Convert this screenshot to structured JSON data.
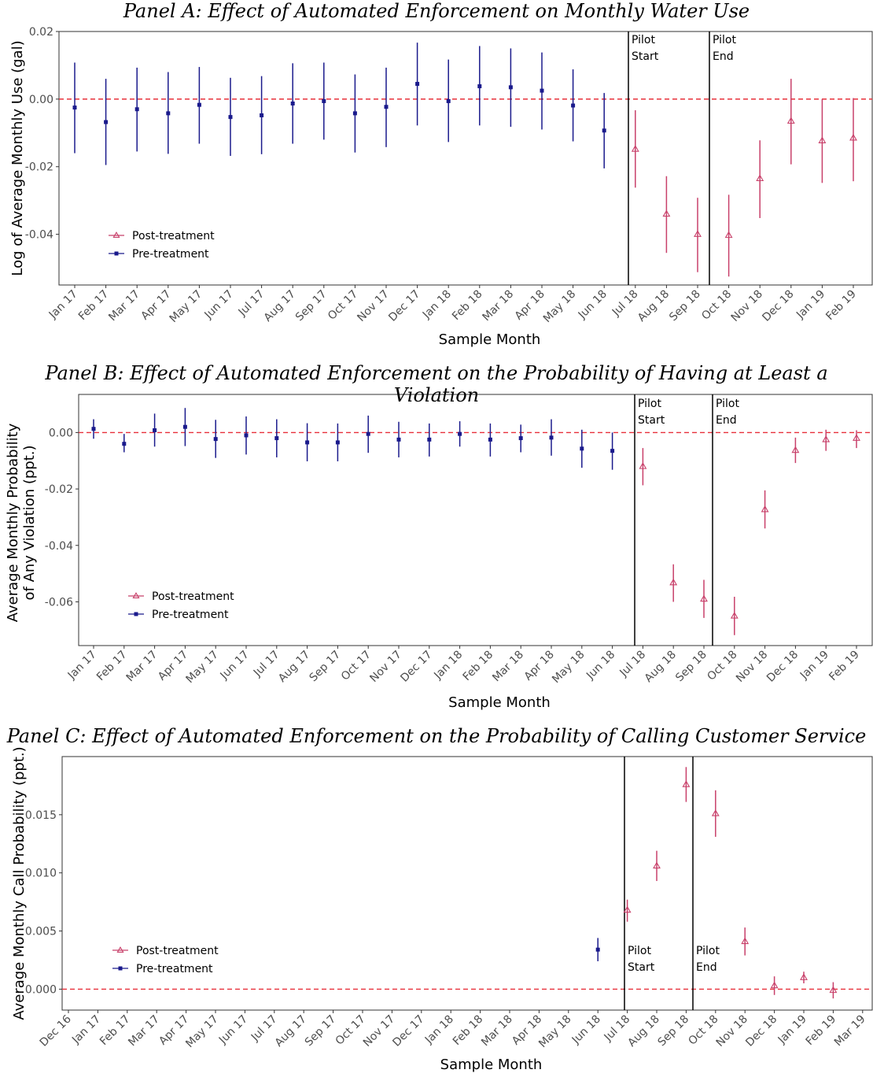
{
  "chart_data": [
    {
      "type": "scatter",
      "title": "Panel A: Effect of Automated Enforcement on Monthly Water Use",
      "xlabel": "Sample Month",
      "ylabel": "Log of Average Monthly Use (gal)",
      "ylim": [
        -0.055,
        0.02
      ],
      "yticks": [
        "0.02",
        "0.00",
        "-0.02",
        "-0.04"
      ],
      "grid": false,
      "legend_position": "bottom-left",
      "categories": [
        "Jan 17",
        "Feb 17",
        "Mar 17",
        "Apr 17",
        "May 17",
        "Jun 17",
        "Jul 17",
        "Aug 17",
        "Sep 17",
        "Oct 17",
        "Nov 17",
        "Dec 17",
        "Jan 18",
        "Feb 18",
        "Mar 18",
        "Apr 18",
        "May 18",
        "Jun 18",
        "Jul 18",
        "Aug 18",
        "Sep 18",
        "Oct 18",
        "Nov 18",
        "Dec 18",
        "Jan 19",
        "Feb 19"
      ],
      "reference_line": 0,
      "vlines": [
        {
          "lines": [
            "Pilot",
            "Start"
          ]
        },
        {
          "lines": [
            "Pilot",
            "End"
          ]
        }
      ],
      "series": [
        {
          "name": "Pre-treatment",
          "color": "#1a1a8c",
          "marker": "square",
          "points": [
            {
              "x": "Jan 17",
              "y": -0.0025,
              "lo": -0.016,
              "hi": 0.0108
            },
            {
              "x": "Feb 17",
              "y": -0.0068,
              "lo": -0.0195,
              "hi": 0.006
            },
            {
              "x": "Mar 17",
              "y": -0.003,
              "lo": -0.0155,
              "hi": 0.0093
            },
            {
              "x": "Apr 17",
              "y": -0.0042,
              "lo": -0.0162,
              "hi": 0.008
            },
            {
              "x": "May 17",
              "y": -0.0017,
              "lo": -0.0132,
              "hi": 0.0095
            },
            {
              "x": "Jun 17",
              "y": -0.0053,
              "lo": -0.0168,
              "hi": 0.0063
            },
            {
              "x": "Jul 17",
              "y": -0.0048,
              "lo": -0.0163,
              "hi": 0.0068
            },
            {
              "x": "Aug 17",
              "y": -0.0013,
              "lo": -0.0132,
              "hi": 0.0106
            },
            {
              "x": "Sep 17",
              "y": -0.0006,
              "lo": -0.012,
              "hi": 0.0108
            },
            {
              "x": "Oct 17",
              "y": -0.0042,
              "lo": -0.0158,
              "hi": 0.0073
            },
            {
              "x": "Nov 17",
              "y": -0.0023,
              "lo": -0.0142,
              "hi": 0.0093
            },
            {
              "x": "Dec 17",
              "y": 0.0045,
              "lo": -0.0078,
              "hi": 0.0167
            },
            {
              "x": "Jan 18",
              "y": -0.0006,
              "lo": -0.0127,
              "hi": 0.0117
            },
            {
              "x": "Feb 18",
              "y": 0.0038,
              "lo": -0.0078,
              "hi": 0.0157
            },
            {
              "x": "Mar 18",
              "y": 0.0035,
              "lo": -0.0082,
              "hi": 0.015
            },
            {
              "x": "Apr 18",
              "y": 0.0025,
              "lo": -0.009,
              "hi": 0.0138
            },
            {
              "x": "May 18",
              "y": -0.0019,
              "lo": -0.0125,
              "hi": 0.0088
            },
            {
              "x": "Jun 18",
              "y": -0.0093,
              "lo": -0.0205,
              "hi": 0.0018
            }
          ]
        },
        {
          "name": "Post-treatment",
          "color": "#c8406a",
          "marker": "triangle",
          "points": [
            {
              "x": "Jul 18",
              "y": -0.0148,
              "lo": -0.0262,
              "hi": -0.0033
            },
            {
              "x": "Aug 18",
              "y": -0.034,
              "lo": -0.0455,
              "hi": -0.0228
            },
            {
              "x": "Sep 18",
              "y": -0.04,
              "lo": -0.0512,
              "hi": -0.0292
            },
            {
              "x": "Oct 18",
              "y": -0.0403,
              "lo": -0.0525,
              "hi": -0.0283
            },
            {
              "x": "Nov 18",
              "y": -0.0235,
              "lo": -0.0352,
              "hi": -0.0122
            },
            {
              "x": "Dec 18",
              "y": -0.0065,
              "lo": -0.0193,
              "hi": 0.006
            },
            {
              "x": "Jan 19",
              "y": -0.0123,
              "lo": -0.0248,
              "hi": 0.0
            },
            {
              "x": "Feb 19",
              "y": -0.0115,
              "lo": -0.0243,
              "hi": 0.0003
            }
          ]
        }
      ]
    },
    {
      "type": "scatter",
      "title": "Panel B: Effect of Automated Enforcement on the Probability of Having at Least a Violation",
      "xlabel": "Sample Month",
      "ylabel": [
        "Average Monthly Probability",
        "of Any Violation (ppt.)"
      ],
      "ylim": [
        -0.0755,
        0.0135
      ],
      "yticks": [
        "0.00",
        "-0.02",
        "-0.04",
        "-0.06"
      ],
      "grid": false,
      "legend_position": "bottom-left",
      "categories": [
        "Jan 17",
        "Feb 17",
        "Mar 17",
        "Apr 17",
        "May 17",
        "Jun 17",
        "Jul 17",
        "Aug 17",
        "Sep 17",
        "Oct 17",
        "Nov 17",
        "Dec 17",
        "Jan 18",
        "Feb 18",
        "Mar 18",
        "Apr 18",
        "May 18",
        "Jun 18",
        "Jul 18",
        "Aug 18",
        "Sep 18",
        "Oct 18",
        "Nov 18",
        "Dec 18",
        "Jan 19",
        "Feb 19"
      ],
      "reference_line": 0,
      "vlines": [
        {
          "lines": [
            "Pilot",
            "Start"
          ]
        },
        {
          "lines": [
            "Pilot",
            "End"
          ]
        }
      ],
      "series": [
        {
          "name": "Pre-treatment",
          "color": "#1a1a8c",
          "marker": "square",
          "points": [
            {
              "x": "Jan 17",
              "y": 0.0013,
              "lo": -0.0022,
              "hi": 0.0047
            },
            {
              "x": "Feb 17",
              "y": -0.004,
              "lo": -0.007,
              "hi": -0.0005
            },
            {
              "x": "Mar 17",
              "y": 0.0008,
              "lo": -0.005,
              "hi": 0.0067
            },
            {
              "x": "Apr 17",
              "y": 0.002,
              "lo": -0.0048,
              "hi": 0.0087
            },
            {
              "x": "May 17",
              "y": -0.0023,
              "lo": -0.009,
              "hi": 0.0045
            },
            {
              "x": "Jun 17",
              "y": -0.001,
              "lo": -0.0078,
              "hi": 0.0057
            },
            {
              "x": "Jul 17",
              "y": -0.002,
              "lo": -0.0088,
              "hi": 0.0047
            },
            {
              "x": "Aug 17",
              "y": -0.0035,
              "lo": -0.0102,
              "hi": 0.0033
            },
            {
              "x": "Sep 17",
              "y": -0.0035,
              "lo": -0.0102,
              "hi": 0.0032
            },
            {
              "x": "Oct 17",
              "y": -0.0005,
              "lo": -0.0072,
              "hi": 0.006
            },
            {
              "x": "Nov 17",
              "y": -0.0025,
              "lo": -0.0088,
              "hi": 0.0038
            },
            {
              "x": "Dec 17",
              "y": -0.0025,
              "lo": -0.0085,
              "hi": 0.0032
            },
            {
              "x": "Jan 18",
              "y": -0.0005,
              "lo": -0.005,
              "hi": 0.004
            },
            {
              "x": "Feb 18",
              "y": -0.0025,
              "lo": -0.0085,
              "hi": 0.0032
            },
            {
              "x": "Mar 18",
              "y": -0.002,
              "lo": -0.007,
              "hi": 0.0028
            },
            {
              "x": "Apr 18",
              "y": -0.0018,
              "lo": -0.0082,
              "hi": 0.0047
            },
            {
              "x": "May 18",
              "y": -0.0057,
              "lo": -0.0125,
              "hi": 0.001
            },
            {
              "x": "Jun 18",
              "y": -0.0065,
              "lo": -0.0132,
              "hi": 0.0
            }
          ]
        },
        {
          "name": "Post-treatment",
          "color": "#c8406a",
          "marker": "triangle",
          "points": [
            {
              "x": "Jul 18",
              "y": -0.012,
              "lo": -0.0187,
              "hi": -0.0055
            },
            {
              "x": "Aug 18",
              "y": -0.0532,
              "lo": -0.06,
              "hi": -0.0467
            },
            {
              "x": "Sep 18",
              "y": -0.059,
              "lo": -0.0657,
              "hi": -0.0522
            },
            {
              "x": "Oct 18",
              "y": -0.065,
              "lo": -0.0718,
              "hi": -0.0582
            },
            {
              "x": "Nov 18",
              "y": -0.0273,
              "lo": -0.034,
              "hi": -0.0205
            },
            {
              "x": "Dec 18",
              "y": -0.0063,
              "lo": -0.0108,
              "hi": -0.0018
            },
            {
              "x": "Jan 19",
              "y": -0.0025,
              "lo": -0.0065,
              "hi": 0.001
            },
            {
              "x": "Feb 19",
              "y": -0.002,
              "lo": -0.0055,
              "hi": 0.0008
            }
          ]
        }
      ]
    },
    {
      "type": "scatter",
      "title": "Panel C: Effect of Automated Enforcement on the Probability of Calling Customer Service",
      "xlabel": "Sample Month",
      "ylabel": "Average Monthly Call Probability (ppt.)",
      "ylim": [
        -0.0018,
        0.02
      ],
      "yticks": [
        "0.015",
        "0.010",
        "0.005",
        "0.000"
      ],
      "grid": false,
      "legend_position": "bottom-left",
      "categories": [
        "Dec 16",
        "Jan 17",
        "Feb 17",
        "Mar 17",
        "Apr 17",
        "May 17",
        "Jun 17",
        "Jul 17",
        "Aug 17",
        "Sep 17",
        "Oct 17",
        "Nov 17",
        "Dec 17",
        "Jan 18",
        "Feb 18",
        "Mar 18",
        "Apr 18",
        "May 18",
        "Jun 18",
        "Jul 18",
        "Aug 18",
        "Sep 18",
        "Oct 18",
        "Nov 18",
        "Dec 18",
        "Jan 19",
        "Feb 19",
        "Mar 19"
      ],
      "reference_line": 0,
      "vlines": [
        {
          "lines": [
            "Pilot",
            "Start"
          ]
        },
        {
          "lines": [
            "Pilot",
            "End"
          ]
        }
      ],
      "series": [
        {
          "name": "Pre-treatment",
          "color": "#1a1a8c",
          "marker": "square",
          "points": [
            {
              "x": "Jun 18",
              "y": 0.0034,
              "lo": 0.0024,
              "hi": 0.0044
            }
          ]
        },
        {
          "name": "Post-treatment",
          "color": "#c8406a",
          "marker": "triangle",
          "points": [
            {
              "x": "Jul 18",
              "y": 0.0068,
              "lo": 0.0058,
              "hi": 0.0077
            },
            {
              "x": "Aug 18",
              "y": 0.0106,
              "lo": 0.0093,
              "hi": 0.0119
            },
            {
              "x": "Sep 18",
              "y": 0.0176,
              "lo": 0.0161,
              "hi": 0.0191
            },
            {
              "x": "Oct 18",
              "y": 0.0151,
              "lo": 0.0131,
              "hi": 0.0171
            },
            {
              "x": "Nov 18",
              "y": 0.0041,
              "lo": 0.0029,
              "hi": 0.0053
            },
            {
              "x": "Dec 18",
              "y": 0.0003,
              "lo": -0.0005,
              "hi": 0.0011
            },
            {
              "x": "Jan 19",
              "y": 0.001,
              "lo": 0.0005,
              "hi": 0.0015
            },
            {
              "x": "Feb 19",
              "y": -0.0001,
              "lo": -0.0008,
              "hi": 0.0006
            }
          ]
        }
      ]
    }
  ]
}
